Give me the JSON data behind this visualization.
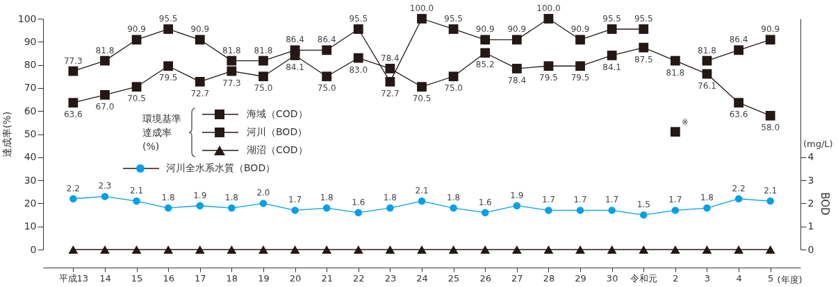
{
  "chart_data": {
    "type": "line",
    "ylabel": "達成率(%)",
    "y2label": "BOD",
    "xlabel": "(年度)",
    "legend": "left",
    "legend_title": "環境基準達成率(%)",
    "categories": [
      "平成13",
      "14",
      "15",
      "16",
      "17",
      "18",
      "19",
      "20",
      "21",
      "22",
      "23",
      "24",
      "25",
      "26",
      "27",
      "28",
      "29",
      "30",
      "令和元",
      "2",
      "3",
      "4",
      "5"
    ],
    "ylim": [
      0,
      100
    ],
    "yticks": [
      0,
      10,
      20,
      30,
      40,
      50,
      60,
      70,
      80,
      90,
      100
    ],
    "y2lim": [
      0,
      10
    ],
    "y2ticks": [
      0,
      1,
      2,
      3,
      4
    ],
    "series": [
      {
        "name": "海域（COD）",
        "marker": "square",
        "color": "#231815",
        "values": [
          77.3,
          81.8,
          90.9,
          95.5,
          90.9,
          81.8,
          81.8,
          86.4,
          86.4,
          95.5,
          72.7,
          100.0,
          95.5,
          90.9,
          90.9,
          100.0,
          90.9,
          95.5,
          95.5,
          null,
          81.8,
          86.4,
          90.9
        ],
        "value_labels": [
          "77.3",
          "81.8",
          "90.9",
          "95.5",
          "90.9",
          "81.8",
          "81.8",
          "86.4",
          "86.4",
          "95.5",
          "72.7",
          "100.0",
          "95.5",
          "90.9",
          "90.9",
          "100.0",
          "90.9",
          "95.5",
          "95.5",
          null,
          "81.8",
          "86.4",
          "90.9"
        ]
      },
      {
        "name": "河川（BOD）",
        "marker": "square",
        "color": "#231815",
        "values": [
          63.6,
          67.0,
          70.5,
          79.5,
          72.7,
          77.3,
          75.0,
          84.1,
          75.0,
          83.0,
          78.4,
          70.5,
          75.0,
          85.2,
          78.4,
          79.5,
          79.5,
          84.1,
          87.5,
          81.8,
          76.1,
          63.6,
          58.0
        ],
        "value_labels": [
          "63.6",
          "67.0",
          "70.5",
          "79.5",
          "72.7",
          "77.3",
          "75.0",
          "84.1",
          "75.0",
          "83.0",
          "78.4",
          "70.5",
          "75.0",
          "85.2",
          "78.4",
          "79.5",
          "79.5",
          "84.1",
          "87.5",
          "81.8",
          "76.1",
          "63.6",
          "58.0"
        ]
      },
      {
        "name": "湖沼（COD）",
        "marker": "triangle",
        "color": "#231815",
        "values": [
          0,
          0,
          0,
          0,
          0,
          0,
          0,
          0,
          0,
          0,
          0,
          0,
          0,
          0,
          0,
          0,
          0,
          0,
          0,
          0,
          0,
          0,
          0
        ]
      },
      {
        "name": "河川全水系水質（BOD）",
        "marker": "circle",
        "axis": "y2",
        "color": "#00a0e9",
        "values": [
          2.2,
          2.3,
          2.1,
          1.8,
          1.9,
          1.8,
          2.0,
          1.7,
          1.8,
          1.6,
          1.8,
          2.1,
          1.8,
          1.6,
          1.9,
          1.7,
          1.7,
          1.7,
          1.5,
          1.7,
          1.8,
          2.2,
          2.1
        ],
        "value_labels": [
          "2.2",
          "2.3",
          "2.1",
          "1.8",
          "1.9",
          "1.8",
          "2.0",
          "1.7",
          "1.8",
          "1.6",
          "1.8",
          "2.1",
          "1.8",
          "1.6",
          "1.9",
          "1.7",
          "1.7",
          "1.7",
          "1.5",
          "1.7",
          "1.8",
          "2.2",
          "2.1"
        ]
      },
      {
        "type": "scatter",
        "marker": "square",
        "color": "#231815",
        "x": [
          "2"
        ],
        "values": [
          51
        ]
      }
    ],
    "annotations": [
      "(mg/L)",
      {
        "text": "※",
        "x": "2",
        "y": 51
      }
    ]
  }
}
